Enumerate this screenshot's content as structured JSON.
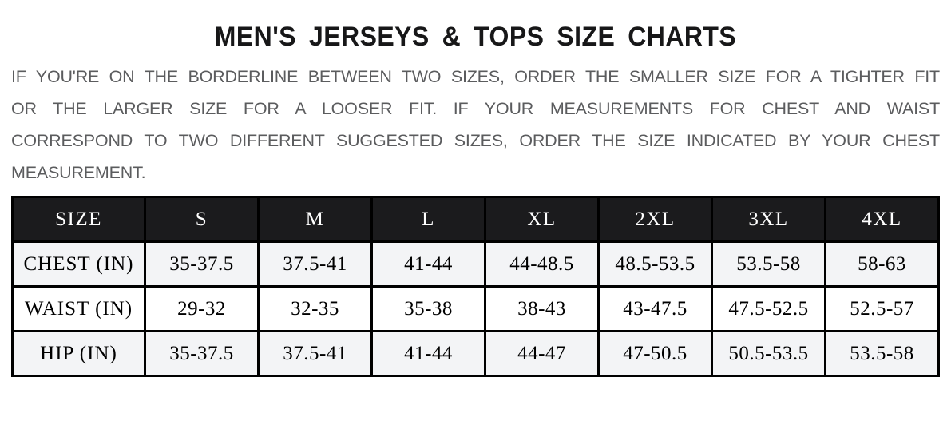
{
  "title": "MEN'S JERSEYS & TOPS SIZE CHARTS",
  "intro": "IF YOU'RE ON THE BORDERLINE BETWEEN TWO SIZES, ORDER THE SMALLER SIZE FOR A TIGHTER FIT OR THE LARGER SIZE FOR A LOOSER FIT. IF YOUR MEASUREMENTS FOR CHEST AND WAIST CORRESPOND TO TWO DIFFERENT SUGGESTED SIZES, ORDER THE SIZE INDICATED BY YOUR CHEST MEASUREMENT.",
  "colors": {
    "title_text": "#171718",
    "intro_text": "#5b5c5e",
    "header_bg": "#1b1b1d",
    "header_text": "#ffffff",
    "row_stripe_bg": "#f3f4f6",
    "row_bg": "#ffffff",
    "table_border": "#000000"
  },
  "size_chart": {
    "columns": [
      "SIZE",
      "S",
      "M",
      "L",
      "XL",
      "2XL",
      "3XL",
      "4XL"
    ],
    "rows": [
      {
        "label": "CHEST (IN)",
        "values": [
          "35-37.5",
          "37.5-41",
          "41-44",
          "44-48.5",
          "48.5-53.5",
          "53.5-58",
          "58-63"
        ]
      },
      {
        "label": "WAIST (IN)",
        "values": [
          "29-32",
          "32-35",
          "35-38",
          "38-43",
          "43-47.5",
          "47.5-52.5",
          "52.5-57"
        ]
      },
      {
        "label": "HIP (IN)",
        "values": [
          "35-37.5",
          "37.5-41",
          "41-44",
          "44-47",
          "47-50.5",
          "50.5-53.5",
          "53.5-58"
        ]
      }
    ]
  }
}
